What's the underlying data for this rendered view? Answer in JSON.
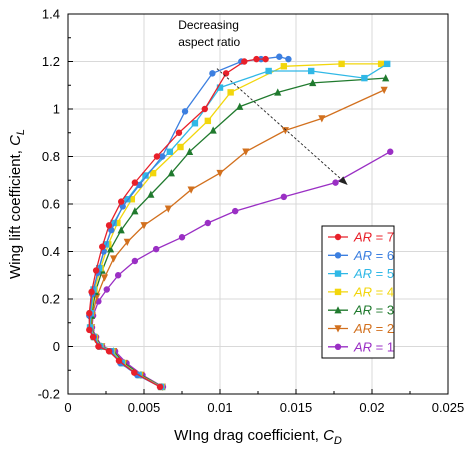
{
  "chart_data": {
    "type": "line",
    "title": "",
    "xlabel_prefix": "WIng drag coefficient, ",
    "xlabel_symbol": "C",
    "xlabel_sub": "D",
    "ylabel_prefix": "Wing lift coefficient, ",
    "ylabel_symbol": "C",
    "ylabel_sub": "L",
    "xlim": [
      0,
      0.025
    ],
    "ylim": [
      -0.2,
      1.4
    ],
    "xticks": [
      0,
      0.005,
      0.01,
      0.015,
      0.02,
      0.025
    ],
    "xtick_labels": [
      "0",
      "0.005",
      "0.01",
      "0.015",
      "0.02",
      "0.025"
    ],
    "yticks": [
      -0.2,
      0,
      0.2,
      0.4,
      0.6,
      0.8,
      1,
      1.2,
      1.4
    ],
    "ytick_labels": [
      "-0.2",
      "0",
      "0.2",
      "0.4",
      "0.6",
      "0.8",
      "1",
      "1.2",
      "1.4"
    ],
    "grid": true,
    "legend_position": "right",
    "annotation": {
      "lines": [
        "Decreasing",
        "aspect ratio"
      ],
      "arrow_from": [
        0.0098,
        1.17
      ],
      "arrow_to": [
        0.0184,
        0.68
      ]
    },
    "series": [
      {
        "name_prefix": "AR",
        "name_value": "= 7",
        "color": "#e8202a",
        "marker": "circle",
        "x": [
          0.00605,
          0.00436,
          0.00335,
          0.0027,
          0.002,
          0.00165,
          0.0014,
          0.0014,
          0.00155,
          0.00185,
          0.00225,
          0.0027,
          0.0035,
          0.0044,
          0.00585,
          0.0073,
          0.009,
          0.0104,
          0.0116,
          0.0124,
          0.013
        ],
        "y": [
          -0.17,
          -0.11,
          -0.06,
          -0.02,
          0.0,
          0.04,
          0.07,
          0.14,
          0.23,
          0.32,
          0.42,
          0.51,
          0.61,
          0.69,
          0.8,
          0.9,
          1.0,
          1.15,
          1.2,
          1.21,
          1.21
        ]
      },
      {
        "name_prefix": "AR",
        "name_value": "= 6",
        "color": "#3c7fe0",
        "marker": "circle",
        "x": [
          0.00608,
          0.00455,
          0.00345,
          0.0028,
          0.00205,
          0.0017,
          0.00145,
          0.0014,
          0.0016,
          0.00195,
          0.00235,
          0.00285,
          0.0036,
          0.0047,
          0.0062,
          0.0077,
          0.0095,
          0.0114,
          0.0127,
          0.0139,
          0.0145
        ],
        "y": [
          -0.17,
          -0.12,
          -0.07,
          -0.02,
          0.0,
          0.04,
          0.07,
          0.13,
          0.22,
          0.31,
          0.4,
          0.49,
          0.59,
          0.68,
          0.8,
          0.99,
          1.15,
          1.2,
          1.21,
          1.22,
          1.21
        ]
      },
      {
        "name_prefix": "AR",
        "name_value": "= 5",
        "color": "#30b8e6",
        "marker": "square",
        "x": [
          0.00612,
          0.00465,
          0.00355,
          0.00285,
          0.00212,
          0.0017,
          0.00145,
          0.0015,
          0.00168,
          0.00205,
          0.0025,
          0.003,
          0.0039,
          0.0051,
          0.0067,
          0.00835,
          0.01,
          0.0132,
          0.016,
          0.0195,
          0.021
        ],
        "y": [
          -0.17,
          -0.12,
          -0.07,
          -0.02,
          0.0,
          0.04,
          0.08,
          0.14,
          0.24,
          0.33,
          0.43,
          0.52,
          0.62,
          0.72,
          0.82,
          0.94,
          1.09,
          1.16,
          1.16,
          1.13,
          1.19
        ]
      },
      {
        "name_prefix": "AR",
        "name_value": "= 4",
        "color": "#f2d60c",
        "marker": "square",
        "x": [
          0.00615,
          0.0047,
          0.0036,
          0.0029,
          0.00215,
          0.00175,
          0.00148,
          0.00152,
          0.00175,
          0.00215,
          0.00265,
          0.00325,
          0.0042,
          0.0056,
          0.0074,
          0.0092,
          0.0107,
          0.0142,
          0.018,
          0.0206
        ],
        "y": [
          -0.17,
          -0.12,
          -0.07,
          -0.02,
          0.0,
          0.04,
          0.08,
          0.14,
          0.24,
          0.33,
          0.43,
          0.52,
          0.62,
          0.73,
          0.84,
          0.95,
          1.07,
          1.18,
          1.19,
          1.19
        ]
      },
      {
        "name_prefix": "AR",
        "name_value": "= 3",
        "color": "#207a2e",
        "marker": "triangle-up",
        "x": [
          0.00618,
          0.0048,
          0.0037,
          0.00298,
          0.0022,
          0.00178,
          0.00152,
          0.00155,
          0.0018,
          0.00225,
          0.0028,
          0.0035,
          0.0044,
          0.00545,
          0.0068,
          0.008,
          0.00955,
          0.0113,
          0.0138,
          0.0161,
          0.0209
        ],
        "y": [
          -0.17,
          -0.12,
          -0.07,
          -0.02,
          0.0,
          0.04,
          0.08,
          0.13,
          0.23,
          0.32,
          0.41,
          0.49,
          0.57,
          0.64,
          0.73,
          0.82,
          0.91,
          1.01,
          1.07,
          1.11,
          1.13
        ]
      },
      {
        "name_prefix": "AR",
        "name_value": "= 2",
        "color": "#d2701e",
        "marker": "triangle-down",
        "x": [
          0.0062,
          0.0048,
          0.0037,
          0.003,
          0.00222,
          0.0018,
          0.00155,
          0.0016,
          0.0019,
          0.0024,
          0.003,
          0.0039,
          0.005,
          0.0066,
          0.0081,
          0.01,
          0.0117,
          0.0143,
          0.0167,
          0.0208
        ],
        "y": [
          -0.17,
          -0.12,
          -0.07,
          -0.02,
          0.0,
          0.03,
          0.08,
          0.13,
          0.21,
          0.29,
          0.37,
          0.44,
          0.51,
          0.58,
          0.66,
          0.73,
          0.82,
          0.91,
          0.96,
          1.08
        ]
      },
      {
        "name_prefix": "AR",
        "name_value": "= 1",
        "color": "#9a2fc4",
        "marker": "circle",
        "x": [
          0.00625,
          0.0049,
          0.00385,
          0.0031,
          0.00225,
          0.00185,
          0.00158,
          0.00165,
          0.002,
          0.00255,
          0.0033,
          0.0044,
          0.0058,
          0.0075,
          0.0092,
          0.011,
          0.0142,
          0.0176,
          0.0212
        ],
        "y": [
          -0.17,
          -0.12,
          -0.07,
          -0.02,
          0.0,
          0.04,
          0.08,
          0.13,
          0.19,
          0.24,
          0.3,
          0.36,
          0.41,
          0.46,
          0.52,
          0.57,
          0.63,
          0.69,
          0.82
        ]
      }
    ]
  }
}
